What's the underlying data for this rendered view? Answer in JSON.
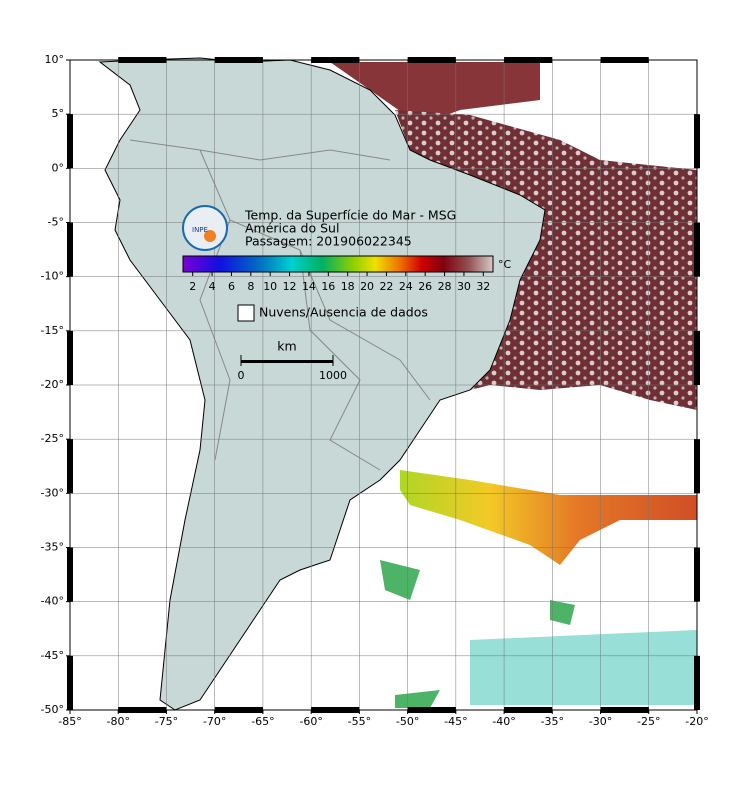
{
  "map": {
    "title": "Temp. da Superfície do Mar - MSG",
    "subtitle": "América do Sul",
    "pass": "Passagem: 201906022345",
    "xlim": [
      -85,
      -20
    ],
    "ylim": [
      -50,
      10
    ],
    "xticks": [
      {
        "value": -85,
        "label": "-85°"
      },
      {
        "value": -80,
        "label": "-80°"
      },
      {
        "value": -75,
        "label": "-75°"
      },
      {
        "value": -70,
        "label": "-70°"
      },
      {
        "value": -65,
        "label": "-65°"
      },
      {
        "value": -60,
        "label": "-60°"
      },
      {
        "value": -55,
        "label": "-55°"
      },
      {
        "value": -50,
        "label": "-50°"
      },
      {
        "value": -45,
        "label": "-45°"
      },
      {
        "value": -40,
        "label": "-40°"
      },
      {
        "value": -35,
        "label": "-35°"
      },
      {
        "value": -30,
        "label": "-30°"
      },
      {
        "value": -25,
        "label": "-25°"
      },
      {
        "value": -20,
        "label": "-20°"
      }
    ],
    "yticks": [
      {
        "value": 10,
        "label": "10°"
      },
      {
        "value": 5,
        "label": "5°"
      },
      {
        "value": 0,
        "label": "0°"
      },
      {
        "value": -5,
        "label": "-5°"
      },
      {
        "value": -10,
        "label": "-10°"
      },
      {
        "value": -15,
        "label": "-15°"
      },
      {
        "value": -20,
        "label": "-20°"
      },
      {
        "value": -25,
        "label": "-25°"
      },
      {
        "value": -30,
        "label": "-30°"
      },
      {
        "value": -35,
        "label": "-35°"
      },
      {
        "value": -40,
        "label": "-40°"
      },
      {
        "value": -45,
        "label": "-45°"
      },
      {
        "value": -50,
        "label": "-50°"
      }
    ],
    "grid": true,
    "colorbar": {
      "unit": "°C",
      "lim": [
        1,
        33
      ],
      "ticks": [
        2,
        4,
        6,
        8,
        10,
        12,
        14,
        16,
        18,
        20,
        22,
        24,
        26,
        28,
        30,
        32
      ]
    },
    "legend": "Nuvens/Ausencia de dados",
    "scalebar": {
      "unit": "km",
      "ticks": [
        0,
        1000
      ]
    }
  }
}
